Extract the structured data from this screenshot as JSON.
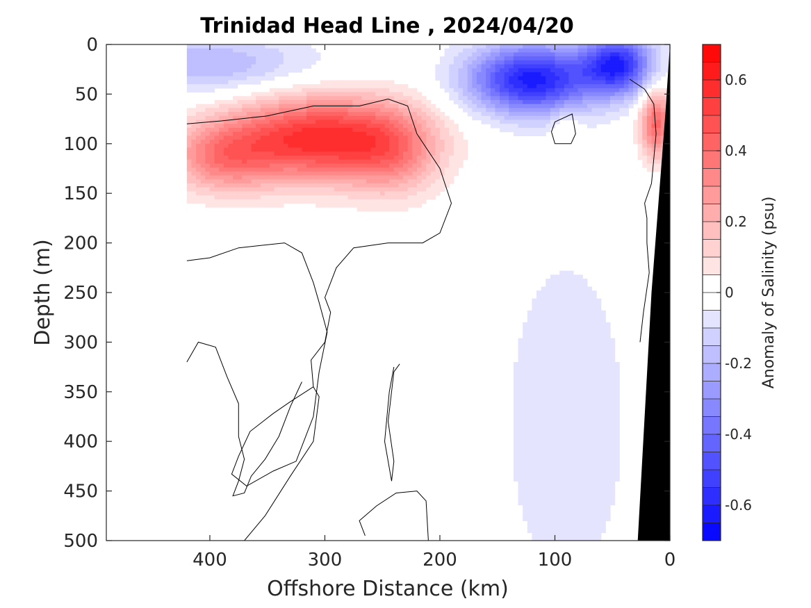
{
  "chart_data": {
    "type": "heatmap",
    "title": "Trinidad Head Line , 2024/04/20",
    "xlabel": "Offshore Distance (km)",
    "ylabel": "Depth (m)",
    "xlim": [
      490,
      0
    ],
    "ylim": [
      0,
      500
    ],
    "x_reversed": true,
    "y_reversed": true,
    "x_ticks": [
      400,
      300,
      200,
      100,
      0
    ],
    "x_tick_labels": [
      "400",
      "300",
      "200",
      "100",
      "0"
    ],
    "y_ticks": [
      0,
      50,
      100,
      150,
      200,
      250,
      300,
      350,
      400,
      450,
      500
    ],
    "y_tick_labels": [
      "0",
      "50",
      "100",
      "150",
      "200",
      "250",
      "300",
      "350",
      "400",
      "450",
      "500"
    ],
    "colorbar": {
      "label": "Anomaly of Salinity (psu)",
      "range": [
        -0.7,
        0.7
      ],
      "ticks": [
        0.6,
        0.4,
        0.2,
        0,
        -0.2,
        -0.4,
        -0.6
      ],
      "tick_labels": [
        "0.6",
        "0.4",
        "0.2",
        "0",
        "-0.2",
        "-0.4",
        "-0.6"
      ],
      "levels": 28,
      "colormap": "blue-white-red",
      "low_color": "#0000ff",
      "high_color": "#ff0000",
      "mid_color": "#ffffff"
    },
    "data_extent_km": [
      420,
      0
    ],
    "contour_level": 0,
    "features": [
      {
        "name": "salty subsurface core",
        "x": 305,
        "y": 95,
        "anomaly": 0.58
      },
      {
        "name": "fresh near-surface core",
        "x": 120,
        "y": 35,
        "anomaly": -0.62
      },
      {
        "name": "fresh surface water offshore",
        "x": 400,
        "y": 30,
        "anomaly": -0.2
      },
      {
        "name": "salty core near coast",
        "x": 12,
        "y": 80,
        "anomaly": 0.42
      },
      {
        "name": "fresh deep tongue",
        "x": 90,
        "y": 380,
        "anomaly": -0.08
      }
    ],
    "bathymetry_color": "#000000",
    "grid": false
  }
}
